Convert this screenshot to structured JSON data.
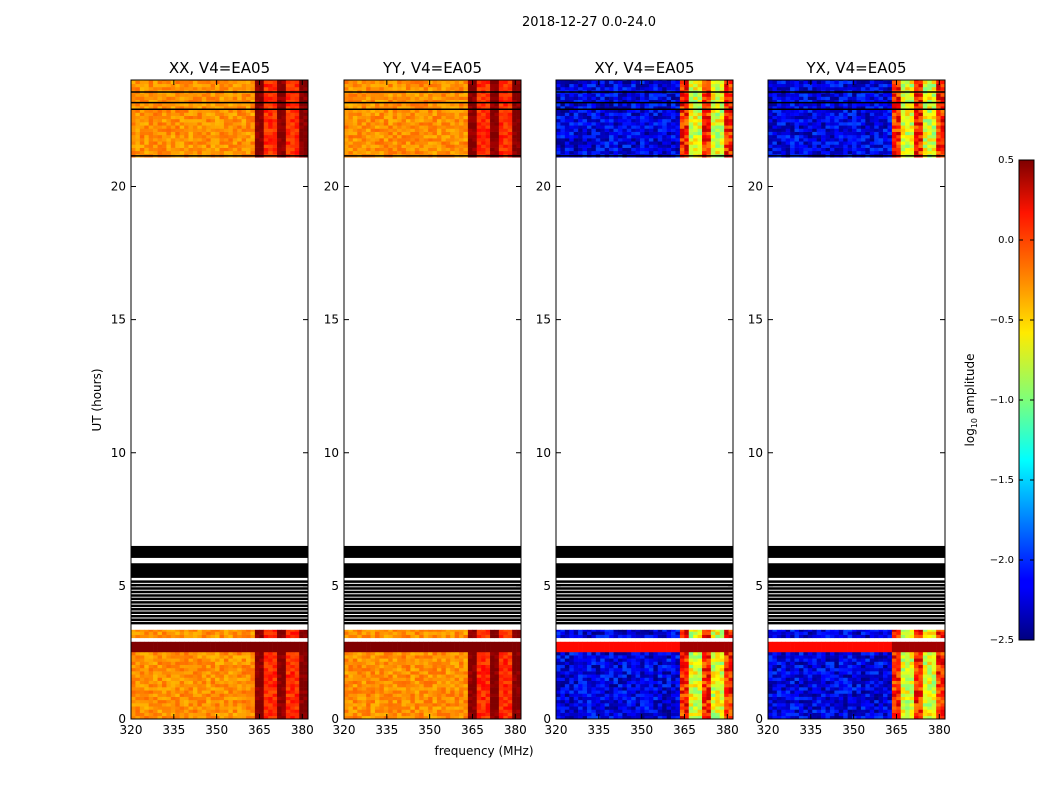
{
  "chart_data": {
    "type": "heatmap",
    "suptitle": "2018-12-27 0.0-24.0",
    "xlabel": "frequency (MHz)",
    "ylabel": "UT (hours)",
    "xlim": [
      320,
      382
    ],
    "ylim": [
      0,
      24
    ],
    "xticks": [
      "320",
      "335",
      "350",
      "365",
      "380"
    ],
    "yticks": [
      "0",
      "5",
      "10",
      "15",
      "20"
    ],
    "colorbar": {
      "label_main": "log",
      "label_sub": "10",
      "label_end": " amplitude",
      "range": [
        -2.5,
        0.5
      ],
      "ticks": [
        "0.5",
        "0.0",
        "−0.5",
        "−1.0",
        "−1.5",
        "−2.0",
        "−2.5"
      ],
      "colormap": "jet"
    },
    "data_time_ranges_hours": [
      [
        0,
        2.9
      ],
      [
        3.05,
        3.35
      ],
      [
        21.1,
        24.0
      ]
    ],
    "flagged_time_ranges_hours": [
      [
        5.3,
        5.85
      ],
      [
        6.05,
        6.5
      ]
    ],
    "panels": [
      {
        "title": "XX, V4=EA05",
        "polarization": "XX",
        "level_low_freq": -0.3,
        "level_high_freq": 0.35
      },
      {
        "title": "YY, V4=EA05",
        "polarization": "YY",
        "level_low_freq": -0.3,
        "level_high_freq": 0.35
      },
      {
        "title": "XY, V4=EA05",
        "polarization": "XY",
        "level_low_freq": -2.2,
        "level_high_freq": -0.2
      },
      {
        "title": "YX, V4=EA05",
        "polarization": "YX",
        "level_low_freq": -2.2,
        "level_high_freq": -0.2
      }
    ]
  }
}
